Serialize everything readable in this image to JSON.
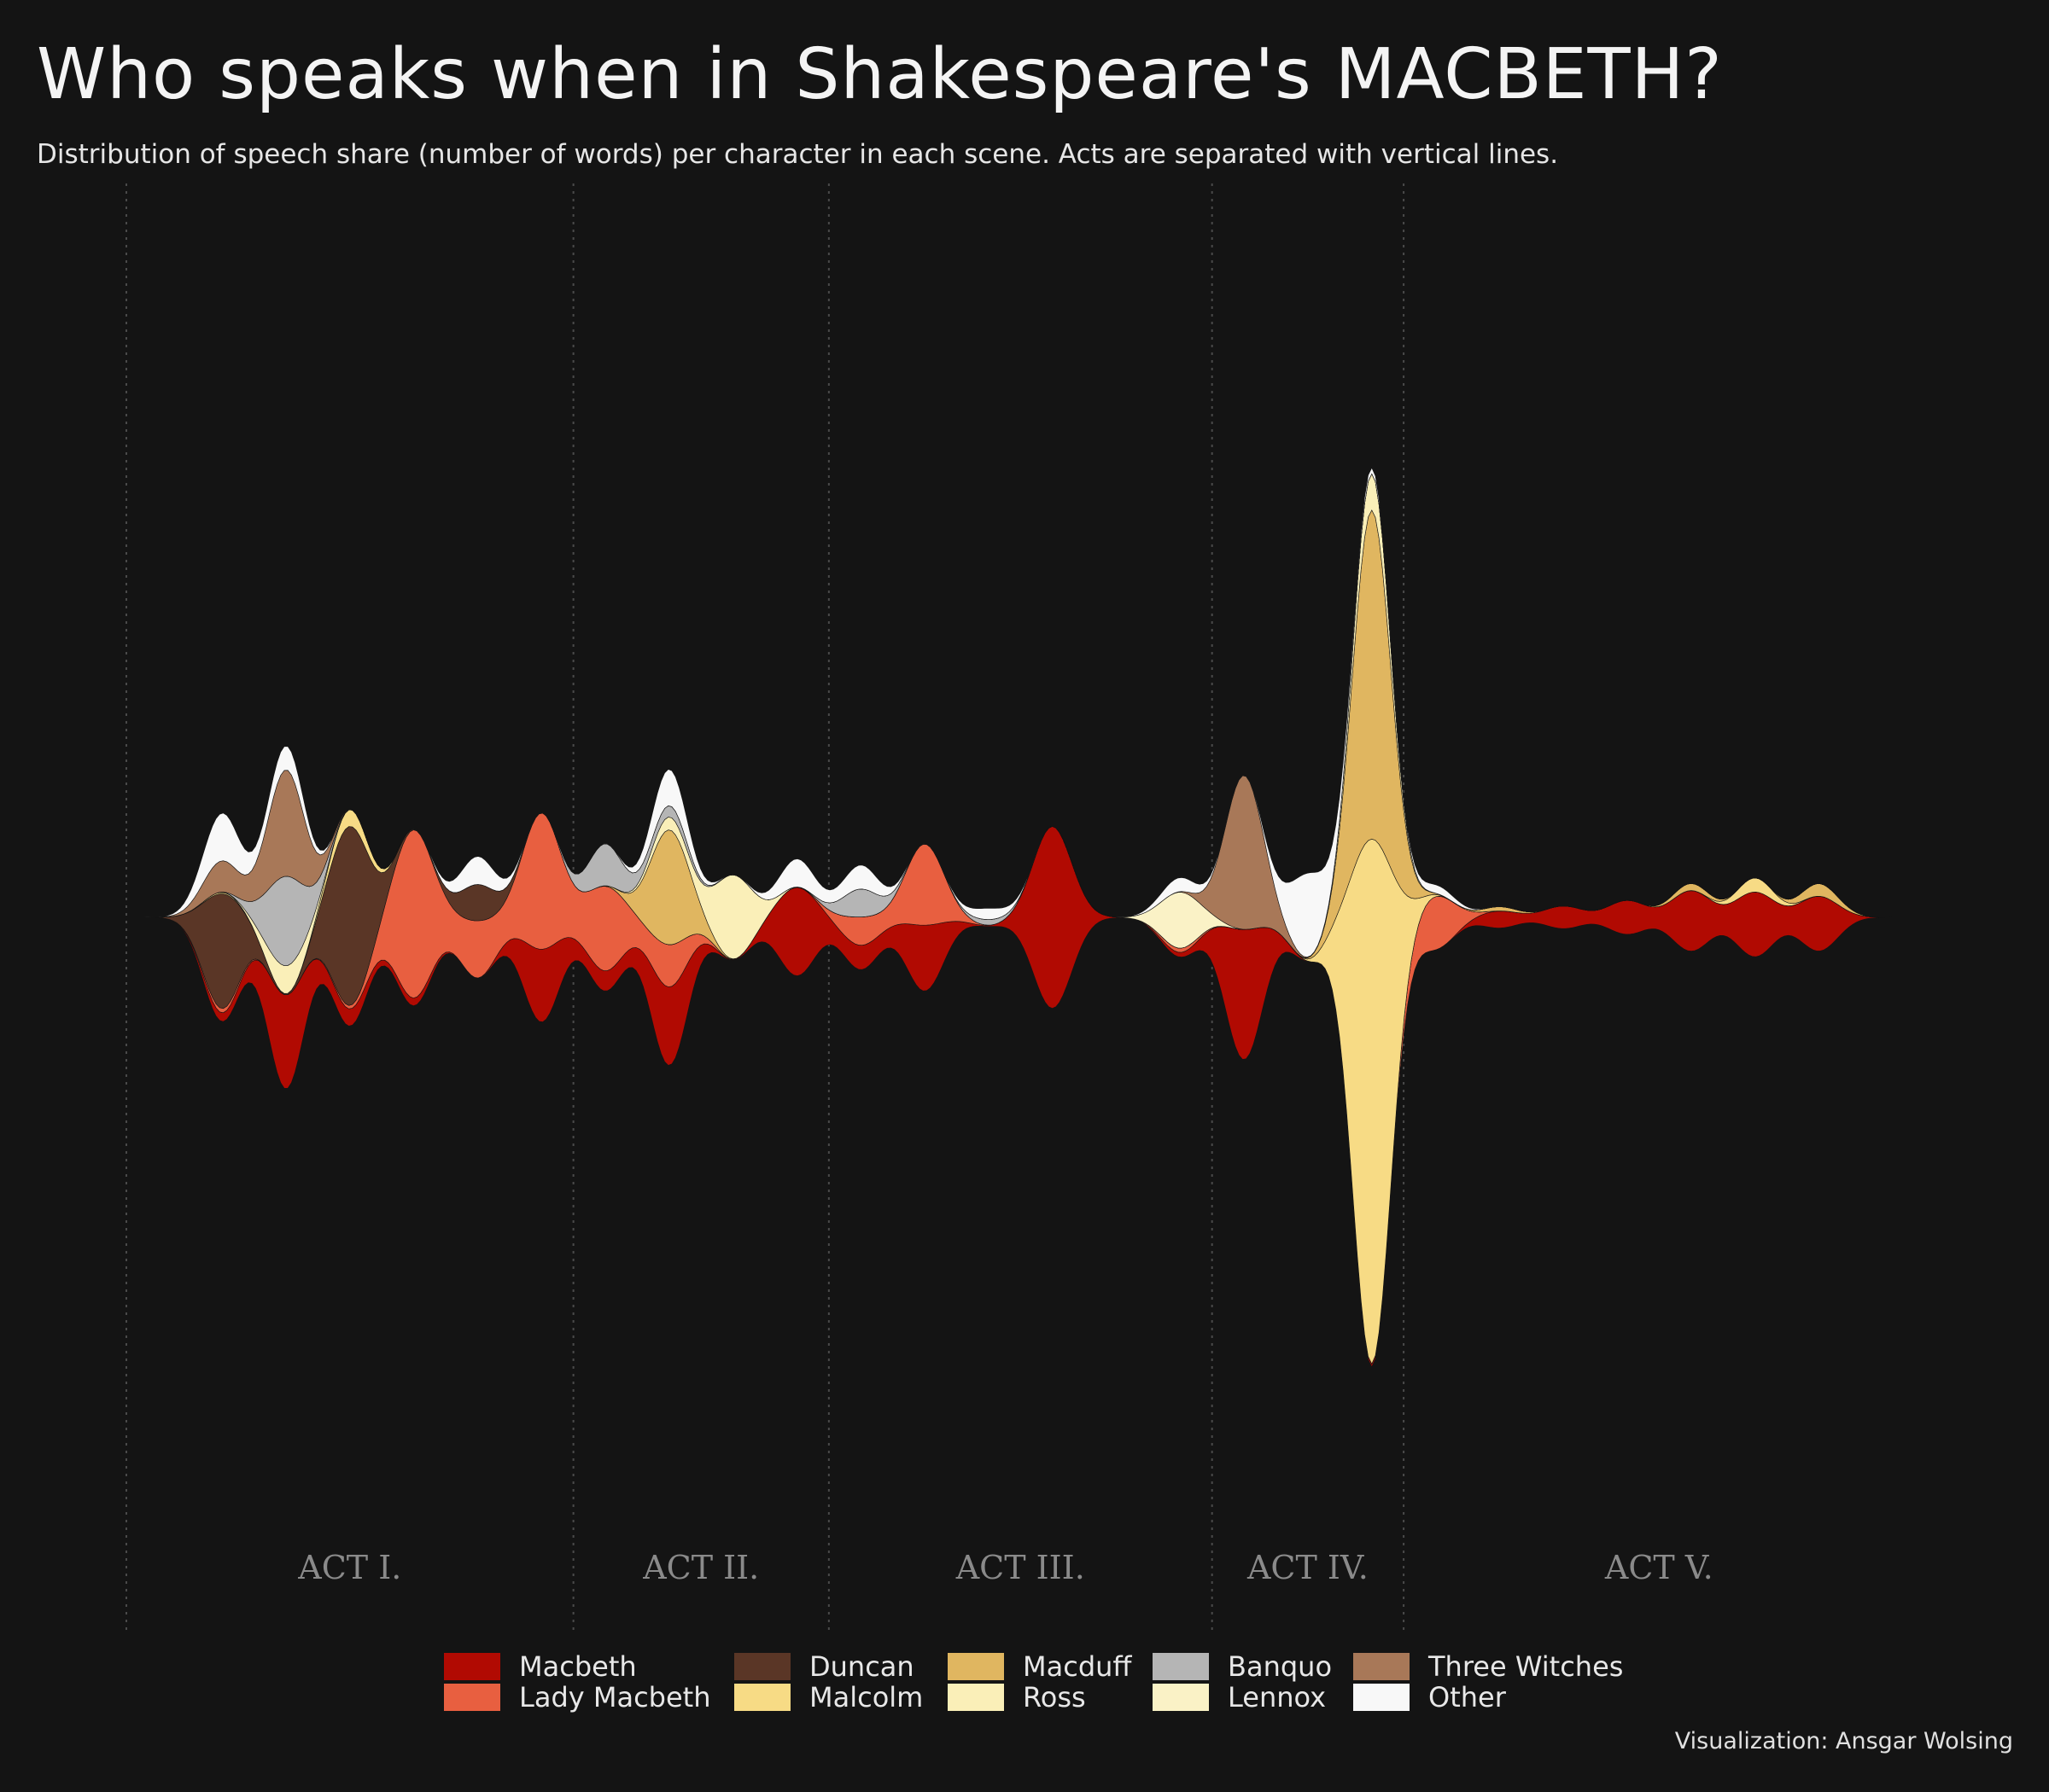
{
  "title": "Who speaks when in Shakespeare's MACBETH?",
  "subtitle": "Distribution of speech share (number of words) per character in each scene. Acts are separated with vertical lines.",
  "credit": "Visualization: Ansgar Wolsing",
  "legend": [
    {
      "name": "Macbeth",
      "color": "#b10a02"
    },
    {
      "name": "Lady Macbeth",
      "color": "#e85f40"
    },
    {
      "name": "Duncan",
      "color": "#5a3626"
    },
    {
      "name": "Malcolm",
      "color": "#f7db85"
    },
    {
      "name": "Macduff",
      "color": "#e0b660"
    },
    {
      "name": "Ross",
      "color": "#faefb8"
    },
    {
      "name": "Banquo",
      "color": "#b5b5b5"
    },
    {
      "name": "Lennox",
      "color": "#faf2c6"
    },
    {
      "name": "Three Witches",
      "color": "#a87858"
    },
    {
      "name": "Other",
      "color": "#f8f8f8"
    }
  ],
  "chart_data": {
    "type": "area",
    "subtype": "streamgraph",
    "x_unit": "scene",
    "acts": [
      {
        "label": "ACT I.",
        "scenes": [
          1,
          7
        ]
      },
      {
        "label": "ACT II.",
        "scenes": [
          8,
          11
        ]
      },
      {
        "label": "ACT III.",
        "scenes": [
          12,
          17
        ]
      },
      {
        "label": "ACT IV.",
        "scenes": [
          18,
          20
        ]
      },
      {
        "label": "ACT V.",
        "scenes": [
          21,
          28
        ]
      }
    ],
    "act_separators": [
      0.5,
      7.5,
      11.5,
      17.5,
      20.5,
      28.5
    ],
    "scenes": [
      1,
      2,
      3,
      4,
      5,
      6,
      7,
      8,
      9,
      10,
      11,
      12,
      13,
      14,
      15,
      16,
      17,
      18,
      19,
      20,
      21,
      22,
      23,
      24,
      25,
      26,
      27,
      28
    ],
    "series": [
      {
        "name": "Macbeth",
        "color": "#b10a02",
        "values": [
          0,
          60,
          670,
          120,
          55,
          0,
          520,
          140,
          560,
          0,
          630,
          170,
          470,
          0,
          1300,
          0,
          30,
          930,
          0,
          20,
          0,
          120,
          160,
          240,
          430,
          460,
          390,
          0
        ]
      },
      {
        "name": "Lady Macbeth",
        "color": "#e85f40",
        "values": [
          0,
          30,
          0,
          20,
          1200,
          400,
          970,
          600,
          300,
          0,
          0,
          200,
          580,
          0,
          0,
          0,
          30,
          0,
          0,
          0,
          380,
          0,
          0,
          0,
          0,
          0,
          0,
          0
        ]
      },
      {
        "name": "Duncan",
        "color": "#5a3626",
        "values": [
          0,
          820,
          0,
          1280,
          0,
          260,
          0,
          0,
          0,
          0,
          0,
          0,
          0,
          0,
          0,
          0,
          0,
          0,
          0,
          0,
          0,
          0,
          0,
          0,
          0,
          0,
          0,
          0
        ]
      },
      {
        "name": "Malcolm",
        "color": "#f7db85",
        "values": [
          0,
          10,
          0,
          120,
          0,
          0,
          0,
          0,
          0,
          0,
          0,
          0,
          0,
          0,
          0,
          0,
          0,
          0,
          0,
          3750,
          0,
          0,
          0,
          0,
          0,
          100,
          0,
          0
        ]
      },
      {
        "name": "Macduff",
        "color": "#e0b660",
        "values": [
          0,
          0,
          0,
          0,
          0,
          0,
          0,
          0,
          820,
          0,
          0,
          0,
          0,
          0,
          0,
          0,
          0,
          0,
          0,
          2350,
          0,
          30,
          0,
          0,
          50,
          0,
          90,
          0
        ]
      },
      {
        "name": "Ross",
        "color": "#faefb8",
        "values": [
          0,
          0,
          200,
          0,
          0,
          0,
          0,
          0,
          90,
          600,
          0,
          0,
          0,
          0,
          0,
          0,
          0,
          0,
          0,
          260,
          0,
          0,
          0,
          0,
          0,
          0,
          0,
          0
        ]
      },
      {
        "name": "Banquo",
        "color": "#b5b5b5",
        "values": [
          0,
          0,
          640,
          0,
          0,
          0,
          0,
          300,
          80,
          0,
          0,
          200,
          0,
          40,
          0,
          0,
          0,
          0,
          0,
          0,
          0,
          0,
          0,
          0,
          0,
          0,
          0,
          0
        ]
      },
      {
        "name": "Lennox",
        "color": "#faf2c6",
        "values": [
          0,
          0,
          0,
          0,
          0,
          0,
          0,
          0,
          0,
          0,
          0,
          0,
          0,
          0,
          0,
          0,
          400,
          0,
          0,
          0,
          0,
          0,
          0,
          0,
          0,
          0,
          0,
          0
        ]
      },
      {
        "name": "Three Witches",
        "color": "#a87858",
        "values": [
          0,
          220,
          760,
          0,
          0,
          0,
          0,
          0,
          0,
          0,
          0,
          0,
          0,
          0,
          0,
          0,
          0,
          1100,
          0,
          0,
          0,
          0,
          0,
          0,
          0,
          0,
          0,
          0
        ]
      },
      {
        "name": "Other",
        "color": "#f8f8f8",
        "values": [
          0,
          340,
          170,
          0,
          0,
          200,
          0,
          0,
          260,
          0,
          200,
          170,
          0,
          80,
          0,
          0,
          100,
          0,
          600,
          40,
          60,
          0,
          0,
          0,
          0,
          0,
          0,
          0
        ]
      }
    ],
    "xlim": [
      0,
      28.6
    ],
    "grid": false,
    "legend_position": "bottom"
  }
}
